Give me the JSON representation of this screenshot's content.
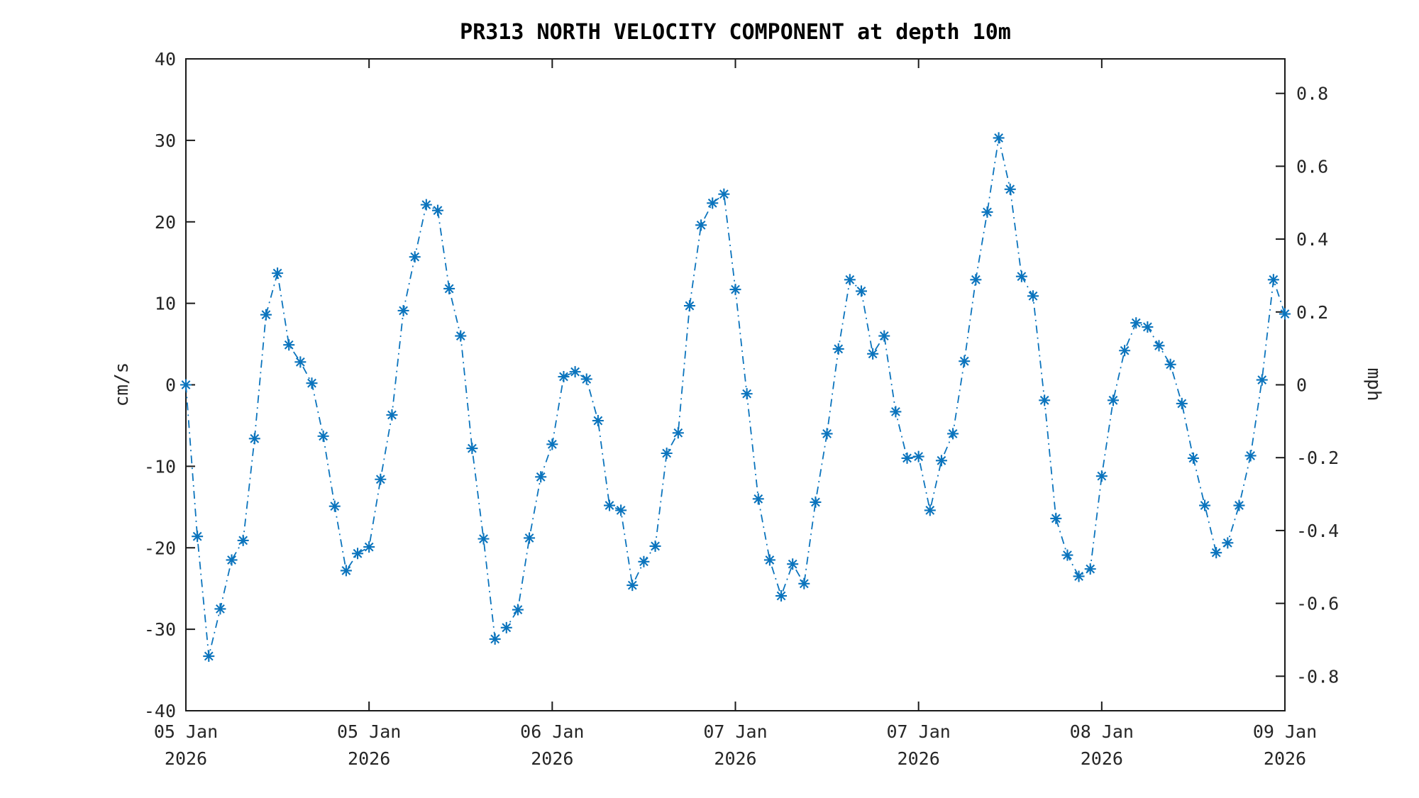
{
  "chart_data": {
    "type": "line",
    "title": "PR313 NORTH VELOCITY COMPONENT at depth 10m",
    "ylabel_left": "cm/s",
    "ylabel_right": "mph",
    "ylim_left": [
      -40,
      40
    ],
    "grid": "off",
    "legend": "none",
    "line_color": "#0b74bd",
    "axis_color": "#262626",
    "spine_color": "#1a1a1a",
    "line_style": "dash-dot",
    "marker": "asterisk",
    "x_start": "05 Jan 2026 00:00",
    "x_end": "09 Jan 2026 00:00",
    "x_total_hours": 96,
    "sample_interval_hours": 1,
    "left_ticks": [
      {
        "v": 40,
        "label": "40"
      },
      {
        "v": 30,
        "label": "30"
      },
      {
        "v": 20,
        "label": "20"
      },
      {
        "v": 10,
        "label": "10"
      },
      {
        "v": 0,
        "label": "0"
      },
      {
        "v": -10,
        "label": "-10"
      },
      {
        "v": -20,
        "label": "-20"
      },
      {
        "v": -30,
        "label": "-30"
      },
      {
        "v": -40,
        "label": "-40"
      }
    ],
    "right_ticks_mph": [
      {
        "v": 0.8,
        "label": "0.8"
      },
      {
        "v": 0.6,
        "label": "0.6"
      },
      {
        "v": 0.4,
        "label": "0.4"
      },
      {
        "v": 0.2,
        "label": "0.2"
      },
      {
        "v": 0,
        "label": "0"
      },
      {
        "v": -0.2,
        "label": "-0.2"
      },
      {
        "v": -0.4,
        "label": "-0.4"
      },
      {
        "v": -0.6,
        "label": "-0.6"
      },
      {
        "v": -0.8,
        "label": "-0.8"
      }
    ],
    "cms_per_mph": 44.704,
    "x_ticks": [
      {
        "hour": 0,
        "line1": "05 Jan",
        "line2": "2026"
      },
      {
        "hour": 16,
        "line1": "05 Jan",
        "line2": "2026"
      },
      {
        "hour": 32,
        "line1": "06 Jan",
        "line2": "2026"
      },
      {
        "hour": 48,
        "line1": "07 Jan",
        "line2": "2026"
      },
      {
        "hour": 64,
        "line1": "07 Jan",
        "line2": "2026"
      },
      {
        "hour": 80,
        "line1": "08 Jan",
        "line2": "2026"
      },
      {
        "hour": 96,
        "line1": "09 Jan",
        "line2": "2026"
      }
    ],
    "series": [
      {
        "name": "north velocity component at 10m (cm/s)",
        "values": [
          0.0,
          -18.6,
          -33.3,
          -27.5,
          -21.5,
          -19.1,
          -6.6,
          8.6,
          13.7,
          4.9,
          2.8,
          0.2,
          -6.3,
          -14.9,
          -22.8,
          -20.7,
          -19.9,
          -11.6,
          -3.7,
          9.1,
          15.7,
          22.1,
          21.4,
          11.8,
          6.0,
          -7.8,
          -18.9,
          -31.2,
          -29.8,
          -27.6,
          -18.8,
          -11.3,
          -7.3,
          1.0,
          1.6,
          0.7,
          -4.4,
          -14.8,
          -15.4,
          -24.6,
          -21.7,
          -19.8,
          -8.4,
          -5.9,
          9.7,
          19.6,
          22.3,
          23.4,
          11.7,
          -1.1,
          -14.0,
          -21.5,
          -25.9,
          -22.0,
          -24.4,
          -14.4,
          -6.0,
          4.4,
          12.9,
          11.5,
          3.8,
          6.0,
          -3.3,
          -9.0,
          -8.8,
          -15.4,
          -9.3,
          -6.0,
          2.9,
          12.9,
          21.2,
          30.3,
          24.0,
          13.3,
          10.9,
          -1.9,
          -16.4,
          -20.9,
          -23.5,
          -22.6,
          -11.2,
          -1.9,
          4.2,
          7.6,
          7.1,
          4.8,
          2.5,
          -2.3,
          -9.0,
          -14.8,
          -20.6,
          -19.4,
          -14.8,
          -8.7,
          0.6,
          12.9,
          8.7
        ]
      }
    ]
  }
}
